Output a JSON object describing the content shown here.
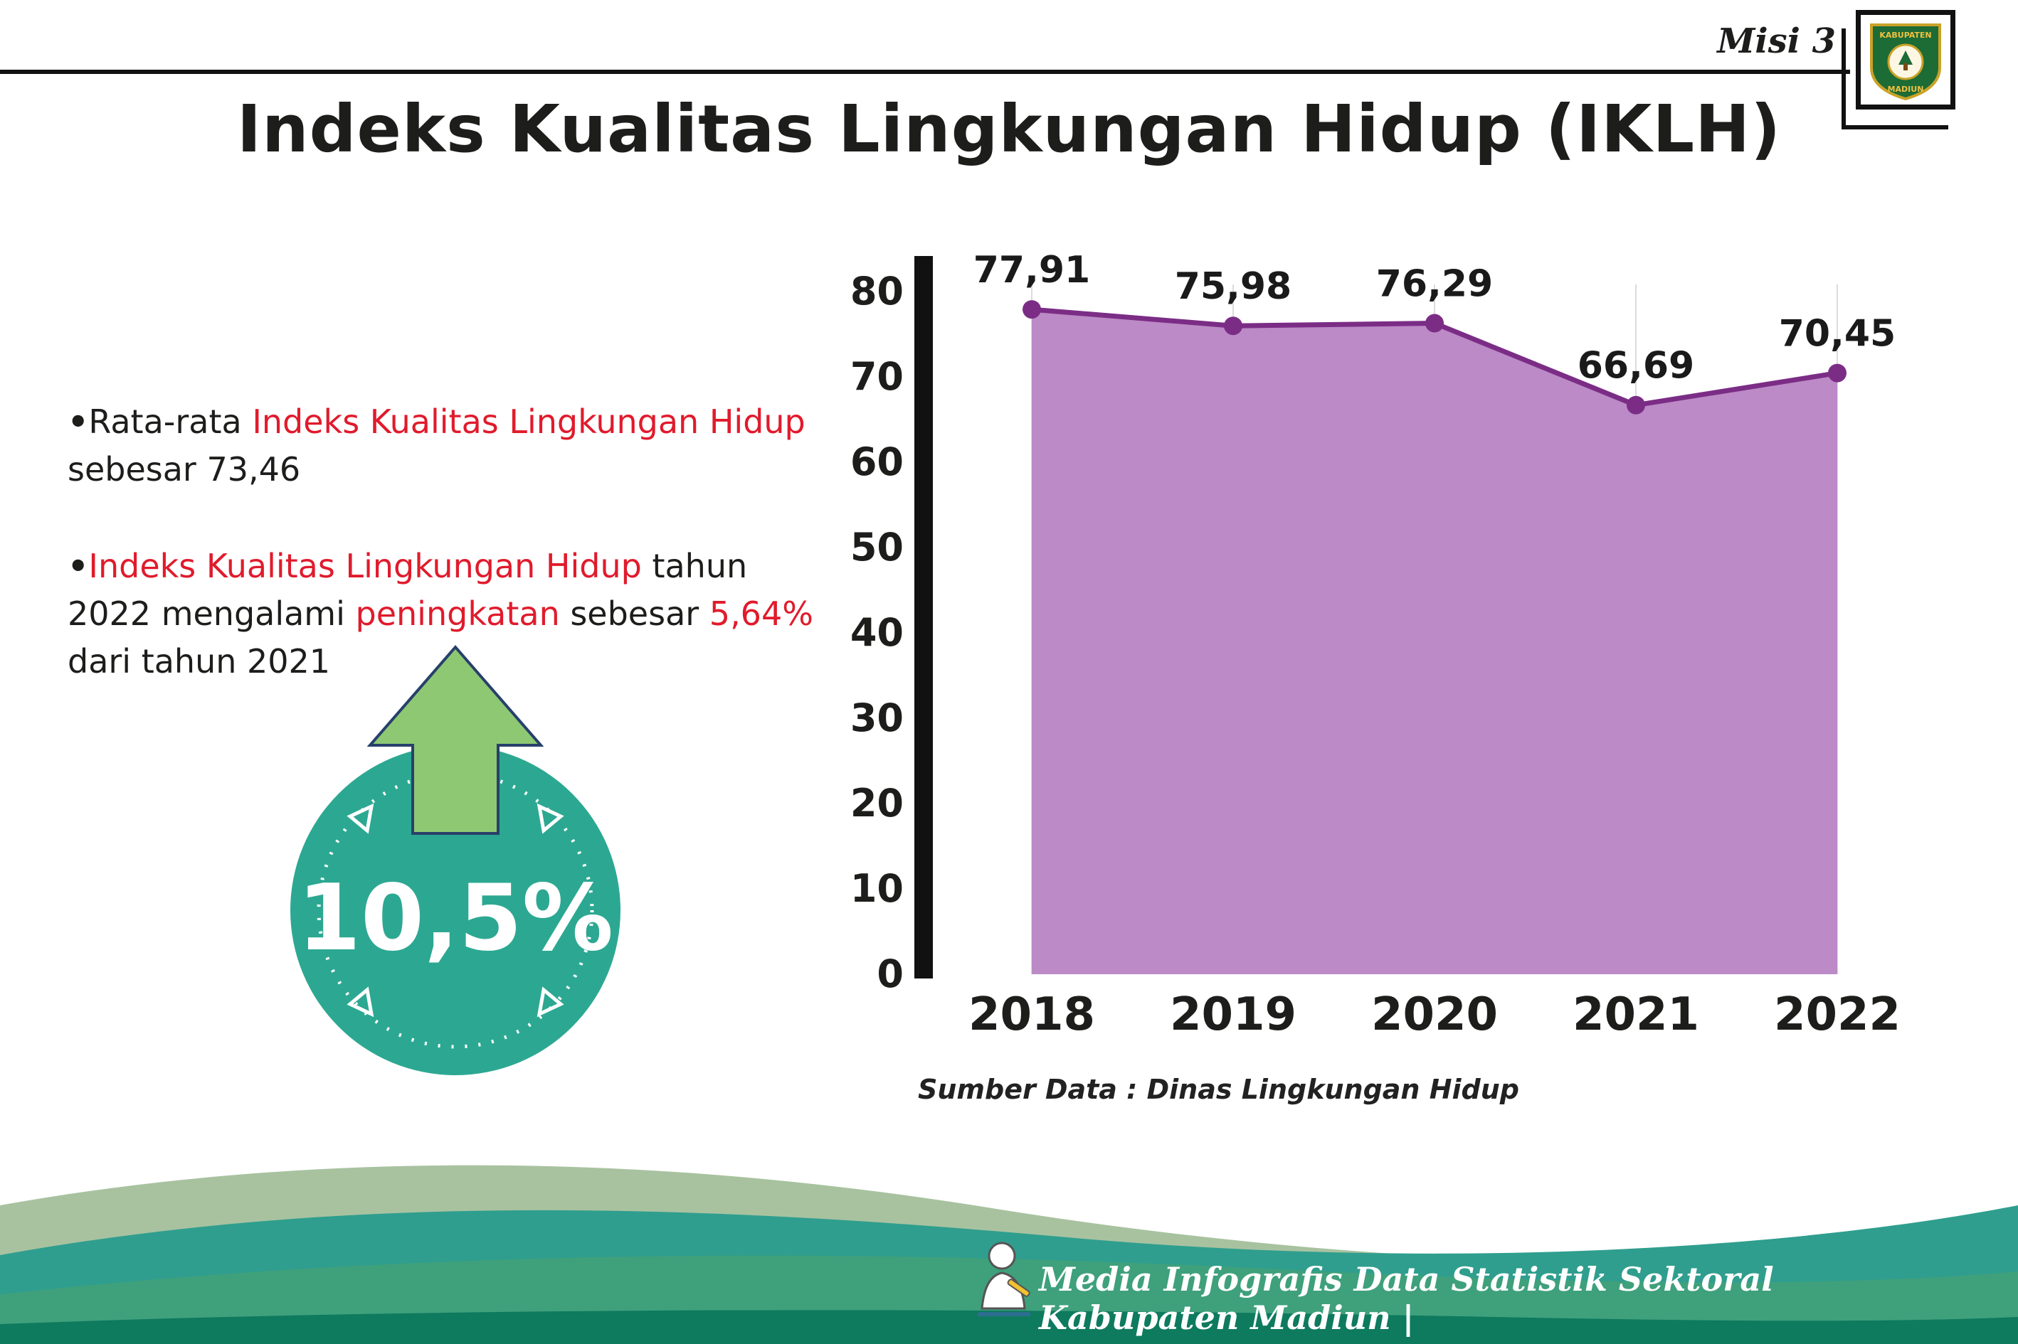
{
  "header": {
    "misi": "Misi 3",
    "title": "Indeks Kualitas Lingkungan Hidup (IKLH)",
    "logo_top": "KABUPATEN",
    "logo_bottom": "MADIUN"
  },
  "bullets": {
    "dot": "•",
    "b1": [
      {
        "t": "Rata-rata "
      },
      {
        "t": "Indeks Kualitas Lingkungan Hidup"
      },
      {
        "t": " sebesar 73,46"
      }
    ],
    "b2": [
      {
        "t": "Indeks Kualitas Lingkungan Hidup"
      },
      {
        "t": " tahun 2022 mengalami "
      },
      {
        "t": "peningkatan"
      },
      {
        "t": " sebesar "
      },
      {
        "t": "5,64%"
      },
      {
        "t": " dari tahun 2021"
      }
    ]
  },
  "badge": {
    "value": "10,5%"
  },
  "chart_data": {
    "type": "area",
    "categories": [
      "2018",
      "2019",
      "2020",
      "2021",
      "2022"
    ],
    "values": [
      77.91,
      75.98,
      76.29,
      66.69,
      70.45
    ],
    "value_labels": [
      "77,91",
      "75,98",
      "76,29",
      "66,69",
      "70,45"
    ],
    "title": "",
    "xlabel": "",
    "ylabel": "",
    "ylim": [
      0,
      80
    ],
    "y_ticks": [
      0,
      10,
      20,
      30,
      40,
      50,
      60,
      70,
      80
    ],
    "grid": true,
    "legend": "none",
    "fill_color": "#bc8ac6",
    "line_color": "#7b2d86",
    "label_color": "#1a1a1a",
    "tick_color": "#1d1d1b"
  },
  "source": "Sumber Data : Dinas Lingkungan Hidup",
  "footer": {
    "credit": "Media Infografis Data Statistik Sektoral Kabupaten Madiun |"
  },
  "colors": {
    "accent_red": "#e01b2c",
    "badge_teal": "#2ca892",
    "arrow_green": "#8ec873",
    "wave_light": "#a8c2a0",
    "wave_teal": "#2f9e8e",
    "wave_green": "#3fa07c",
    "wave_dark": "#0e7a5e"
  }
}
